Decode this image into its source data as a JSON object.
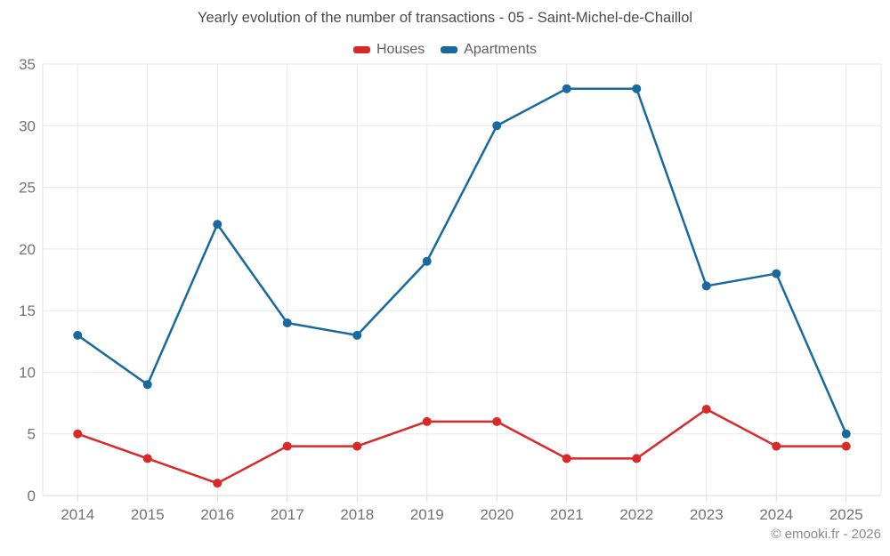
{
  "chart_data": {
    "type": "line",
    "title": "Yearly evolution of the number of transactions - 05 - Saint-Michel-de-Chaillol",
    "categories": [
      "2014",
      "2015",
      "2016",
      "2017",
      "2018",
      "2019",
      "2020",
      "2021",
      "2022",
      "2023",
      "2024",
      "2025"
    ],
    "series": [
      {
        "name": "Houses",
        "color": "#d92929",
        "values": [
          5,
          3,
          1,
          4,
          4,
          6,
          6,
          3,
          3,
          7,
          4,
          4
        ]
      },
      {
        "name": "Apartments",
        "color": "#17699e",
        "values": [
          13,
          9,
          22,
          14,
          13,
          19,
          30,
          33,
          33,
          17,
          18,
          5
        ]
      }
    ],
    "ylim": [
      0,
      35
    ],
    "yticks": [
      0,
      5,
      10,
      15,
      20,
      25,
      30,
      35
    ],
    "grid": "on",
    "legend_position": "top",
    "xlabel": "",
    "ylabel": ""
  },
  "colors": {
    "grid_line": "#e7e7e7",
    "axis_line": "#d8d8d8",
    "tick_label": "#737373",
    "title_text": "#4b4b4b",
    "legend_text": "#5f5f5f"
  },
  "footer": {
    "text": "© emooki.fr - 2026"
  }
}
